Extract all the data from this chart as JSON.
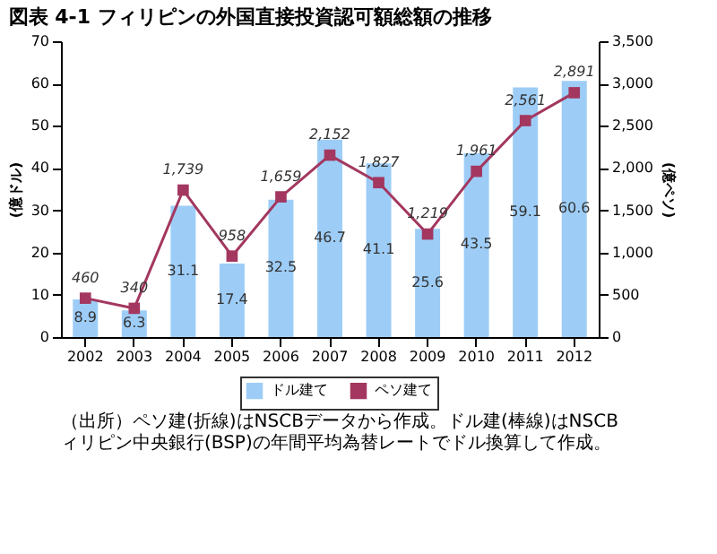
{
  "chart_data": {
    "type": "bar",
    "title": "図表 4-1 フィリピンの外国直接投資認可額総額の推移",
    "categories": [
      "2002",
      "2003",
      "2004",
      "2005",
      "2006",
      "2007",
      "2008",
      "2009",
      "2010",
      "2011",
      "2012"
    ],
    "series": [
      {
        "name": "ドル建て",
        "color": "#9dcdf7",
        "values": [
          8.9,
          6.3,
          31.1,
          17.4,
          32.5,
          46.7,
          41.1,
          25.6,
          43.5,
          59.1,
          60.6
        ]
      },
      {
        "name": "ペソ建て",
        "type": "line",
        "axis": "y2",
        "color": "#a3375f",
        "marker": "square",
        "values": [
          460,
          340,
          1739,
          958,
          1659,
          2152,
          1827,
          1219,
          1961,
          2561,
          2891
        ],
        "value_labels": [
          "460",
          "340",
          "1,739",
          "958",
          "1,659",
          "2,152",
          "1,827",
          "1,219",
          "1,961",
          "2,561",
          "2,891"
        ]
      }
    ],
    "data_labels": true,
    "ylabel": "(億ドル)",
    "y2label": "(億ペソ)",
    "ylim": [
      0,
      70
    ],
    "yticks": [
      0,
      10,
      20,
      30,
      40,
      50,
      60,
      70
    ],
    "y2lim": [
      0,
      3500
    ],
    "y2ticks": [
      {
        "value": 0,
        "label": "0"
      },
      {
        "value": 500,
        "label": "500"
      },
      {
        "value": 1000,
        "label": "1,000"
      },
      {
        "value": 1500,
        "label": "1,500"
      },
      {
        "value": 2000,
        "label": "2,000"
      },
      {
        "value": 2500,
        "label": "2,500"
      },
      {
        "value": 3000,
        "label": "3,000"
      },
      {
        "value": 3500,
        "label": "3,500"
      }
    ],
    "grid": false,
    "legend": "bottom",
    "annotations": [
      "（出所）ペソ建(折線)はNSCBデータから作成。ドル建(棒線)はNSCB",
      "ィリピン中央銀行(BSP)の年間平均為替レートでドル換算して作成。"
    ]
  }
}
